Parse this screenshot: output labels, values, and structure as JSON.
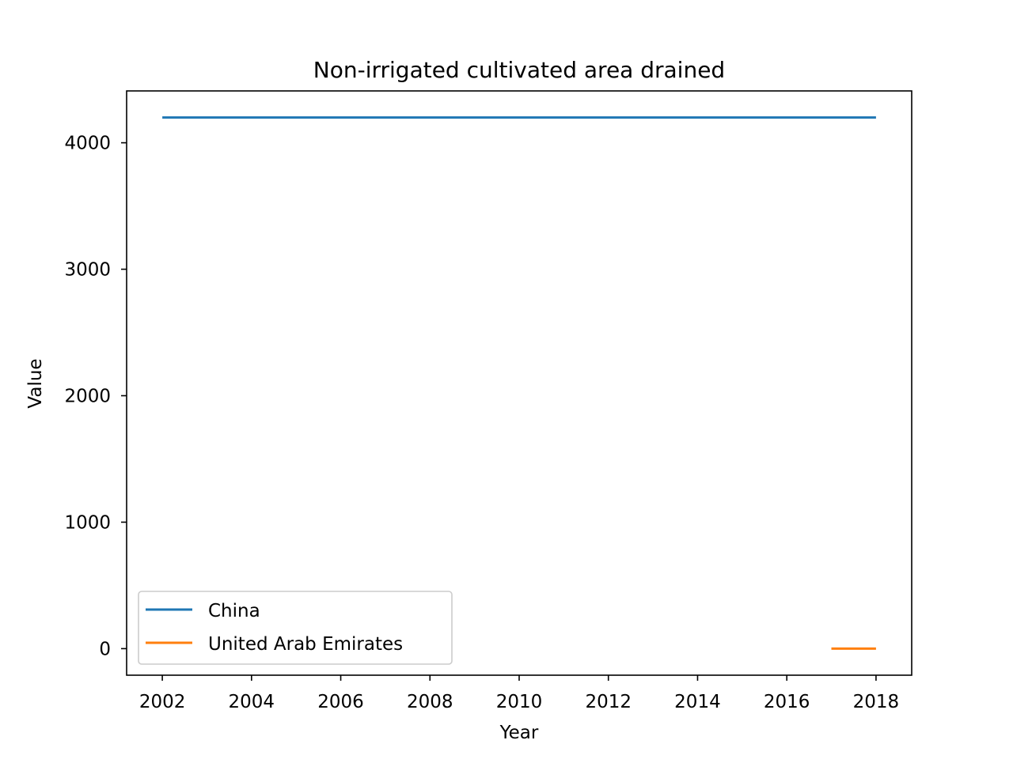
{
  "chart_data": {
    "type": "line",
    "title": "Non-irrigated cultivated area drained",
    "xlabel": "Year",
    "ylabel": "Value",
    "xlim": [
      2001.2,
      2018.8
    ],
    "ylim": [
      -210,
      4410
    ],
    "xticks": [
      2002,
      2004,
      2006,
      2008,
      2010,
      2012,
      2014,
      2016,
      2018
    ],
    "yticks": [
      0,
      1000,
      2000,
      3000,
      4000
    ],
    "grid": false,
    "legend_position": "lower-left",
    "series": [
      {
        "name": "China",
        "color": "#1f77b4",
        "points": [
          [
            2002,
            4200
          ],
          [
            2018,
            4200
          ]
        ]
      },
      {
        "name": "United Arab Emirates",
        "color": "#ff7f0e",
        "points": [
          [
            2017,
            0
          ],
          [
            2018,
            0
          ]
        ]
      }
    ]
  }
}
